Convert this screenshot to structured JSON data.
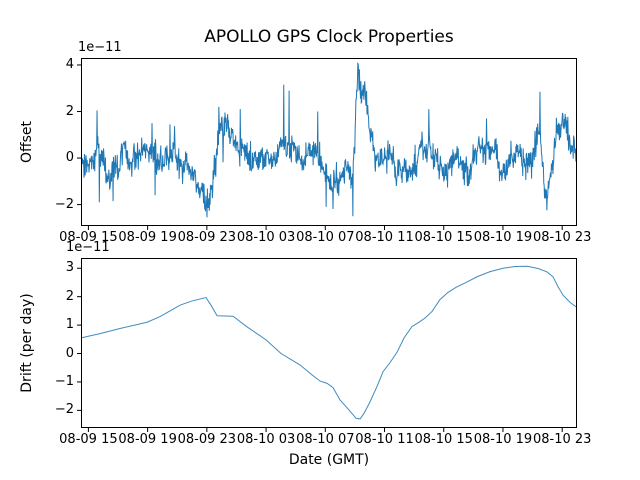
{
  "chart_data": [
    {
      "type": "line",
      "title": "APOLLO GPS Clock Properties",
      "ylabel": "Offset",
      "xlabel": "",
      "offset_text": "1e−11",
      "line_color": "#1f77b4",
      "ylim": [
        -2.92,
        4.3
      ],
      "yticks": [
        -2,
        0,
        2,
        4
      ],
      "y_tick_labels": [
        "−2",
        "0",
        "2",
        "4"
      ],
      "x_tick_labels": [
        "08-09 15",
        "08-09 19",
        "08-09 23",
        "08-10 03",
        "08-10 07",
        "08-10 11",
        "08-10 15",
        "08-10 19",
        "08-10 23"
      ],
      "x_tick_hours": [
        0.5,
        4.5,
        8.5,
        12.5,
        16.5,
        20.5,
        24.5,
        28.5,
        32.5
      ],
      "x_range_hours": [
        0,
        33.5
      ],
      "x_start": "08-09 14:30",
      "x_end": "08-11 00:00",
      "grid": false,
      "units": "seconds (1e-11)",
      "noise": {
        "white_sd": 0.28,
        "walk_sd": 0.12,
        "walk_rho": 0.88,
        "n": 1300,
        "seed": 1337
      },
      "mean_anchors": [
        [
          0.0,
          -0.15
        ],
        [
          0.6,
          0.0
        ],
        [
          1.1,
          0.3
        ],
        [
          1.6,
          -0.3
        ],
        [
          2.2,
          -0.55
        ],
        [
          2.8,
          0.0
        ],
        [
          3.3,
          -0.1
        ],
        [
          4.0,
          0.1
        ],
        [
          4.7,
          0.35
        ],
        [
          5.2,
          -0.2
        ],
        [
          5.7,
          0.05
        ],
        [
          6.4,
          -0.05
        ],
        [
          7.1,
          -0.2
        ],
        [
          7.8,
          -0.9
        ],
        [
          8.2,
          -1.6
        ],
        [
          8.6,
          -1.85
        ],
        [
          8.85,
          -1.0
        ],
        [
          9.2,
          0.7
        ],
        [
          9.5,
          1.35
        ],
        [
          9.9,
          1.15
        ],
        [
          10.3,
          0.55
        ],
        [
          10.7,
          0.2
        ],
        [
          11.3,
          0.1
        ],
        [
          11.8,
          0.1
        ],
        [
          12.4,
          0.05
        ],
        [
          12.9,
          -0.15
        ],
        [
          13.4,
          0.2
        ],
        [
          13.9,
          0.45
        ],
        [
          14.45,
          0.05
        ],
        [
          15.0,
          -0.25
        ],
        [
          15.5,
          0.1
        ],
        [
          16.0,
          0.35
        ],
        [
          16.4,
          -0.5
        ],
        [
          16.8,
          -1.05
        ],
        [
          17.2,
          -1.1
        ],
        [
          17.6,
          -0.55
        ],
        [
          18.0,
          -0.35
        ],
        [
          18.3,
          -1.0
        ],
        [
          18.5,
          0.8
        ],
        [
          18.7,
          3.85
        ],
        [
          18.9,
          3.1
        ],
        [
          19.1,
          3.0
        ],
        [
          19.4,
          1.7
        ],
        [
          19.65,
          0.55
        ],
        [
          20.0,
          -0.45
        ],
        [
          20.4,
          -0.45
        ],
        [
          20.9,
          0.0
        ],
        [
          21.35,
          -0.3
        ],
        [
          21.75,
          -0.55
        ],
        [
          22.2,
          -0.35
        ],
        [
          22.7,
          0.0
        ],
        [
          23.1,
          0.25
        ],
        [
          23.45,
          0.7
        ],
        [
          23.75,
          0.25
        ],
        [
          24.2,
          -0.25
        ],
        [
          24.6,
          -0.4
        ],
        [
          25.05,
          -0.15
        ],
        [
          25.45,
          0.1
        ],
        [
          25.85,
          -0.2
        ],
        [
          26.3,
          -0.5
        ],
        [
          26.7,
          -0.15
        ],
        [
          27.1,
          0.25
        ],
        [
          27.5,
          0.4
        ],
        [
          27.9,
          0.05
        ],
        [
          28.3,
          -0.3
        ],
        [
          28.7,
          0.0
        ],
        [
          29.1,
          0.3
        ],
        [
          29.5,
          0.15
        ],
        [
          29.9,
          -0.15
        ],
        [
          30.3,
          0.2
        ],
        [
          30.7,
          0.7
        ],
        [
          31.0,
          1.1
        ],
        [
          31.2,
          -0.6
        ],
        [
          31.4,
          -1.4
        ],
        [
          31.65,
          -0.7
        ],
        [
          31.95,
          0.2
        ],
        [
          32.2,
          1.0
        ],
        [
          32.5,
          1.3
        ],
        [
          32.8,
          1.05
        ],
        [
          33.15,
          0.6
        ],
        [
          33.5,
          0.35
        ]
      ],
      "spikes": [
        [
          1.08,
          2.05
        ],
        [
          1.25,
          -1.9
        ],
        [
          2.16,
          -1.85
        ],
        [
          4.8,
          1.5
        ],
        [
          5.0,
          -1.6
        ],
        [
          6.0,
          1.45
        ],
        [
          8.5,
          -2.55
        ],
        [
          9.3,
          2.2
        ],
        [
          10.75,
          2.1
        ],
        [
          13.7,
          3.15
        ],
        [
          14.05,
          2.9
        ],
        [
          16.0,
          2.0
        ],
        [
          16.55,
          -2.1
        ],
        [
          18.35,
          -2.5
        ],
        [
          18.72,
          4.05
        ],
        [
          19.17,
          3.3
        ],
        [
          23.5,
          2.1
        ],
        [
          27.4,
          1.7
        ],
        [
          31.0,
          2.85
        ],
        [
          31.45,
          -2.25
        ],
        [
          32.55,
          1.9
        ]
      ]
    },
    {
      "type": "line",
      "title": "",
      "ylabel": "Drift (per day)",
      "xlabel": "Date (GMT)",
      "offset_text": "1e−11",
      "line_color": "#1f77b4",
      "ylim": [
        -2.62,
        3.36
      ],
      "yticks": [
        -2,
        -1,
        0,
        1,
        2,
        3
      ],
      "y_tick_labels": [
        "−2",
        "−1",
        "0",
        "1",
        "2",
        "3"
      ],
      "x_tick_labels": [
        "08-09 15",
        "08-09 19",
        "08-09 23",
        "08-10 03",
        "08-10 07",
        "08-10 11",
        "08-10 15",
        "08-10 19",
        "08-10 23"
      ],
      "x_tick_hours": [
        0.5,
        4.5,
        8.5,
        12.5,
        16.5,
        20.5,
        24.5,
        28.5,
        32.5
      ],
      "x_range_hours": [
        0,
        33.5
      ],
      "x_start": "08-09 14:30",
      "x_end": "08-11 00:00",
      "grid": false,
      "units": "seconds per day (1e-11)",
      "points": [
        [
          0.0,
          0.55
        ],
        [
          1.28,
          0.7
        ],
        [
          2.63,
          0.88
        ],
        [
          4.46,
          1.1
        ],
        [
          5.34,
          1.3
        ],
        [
          6.01,
          1.5
        ],
        [
          6.69,
          1.7
        ],
        [
          7.5,
          1.85
        ],
        [
          8.44,
          1.97
        ],
        [
          8.78,
          1.7
        ],
        [
          9.19,
          1.33
        ],
        [
          9.73,
          1.32
        ],
        [
          10.27,
          1.31
        ],
        [
          11.21,
          0.94
        ],
        [
          12.5,
          0.48
        ],
        [
          13.51,
          0.0
        ],
        [
          14.79,
          -0.4
        ],
        [
          15.6,
          -0.75
        ],
        [
          16.15,
          -0.97
        ],
        [
          16.62,
          -1.05
        ],
        [
          17.02,
          -1.2
        ],
        [
          17.5,
          -1.64
        ],
        [
          18.04,
          -1.95
        ],
        [
          18.58,
          -2.28
        ],
        [
          18.85,
          -2.3
        ],
        [
          19.12,
          -2.1
        ],
        [
          19.52,
          -1.7
        ],
        [
          20.0,
          -1.15
        ],
        [
          20.4,
          -0.64
        ],
        [
          20.87,
          -0.32
        ],
        [
          21.35,
          0.05
        ],
        [
          21.82,
          0.55
        ],
        [
          22.36,
          0.95
        ],
        [
          22.77,
          1.08
        ],
        [
          23.24,
          1.25
        ],
        [
          23.71,
          1.48
        ],
        [
          24.25,
          1.9
        ],
        [
          24.79,
          2.15
        ],
        [
          25.33,
          2.33
        ],
        [
          26.01,
          2.5
        ],
        [
          26.75,
          2.7
        ],
        [
          27.63,
          2.88
        ],
        [
          28.51,
          3.0
        ],
        [
          29.32,
          3.06
        ],
        [
          30.13,
          3.07
        ],
        [
          30.87,
          2.99
        ],
        [
          31.48,
          2.87
        ],
        [
          31.88,
          2.7
        ],
        [
          32.22,
          2.35
        ],
        [
          32.56,
          2.05
        ],
        [
          33.03,
          1.8
        ],
        [
          33.5,
          1.62
        ]
      ]
    }
  ],
  "colors": {
    "line": "#1f77b4",
    "axis": "#000000",
    "background": "#ffffff"
  }
}
